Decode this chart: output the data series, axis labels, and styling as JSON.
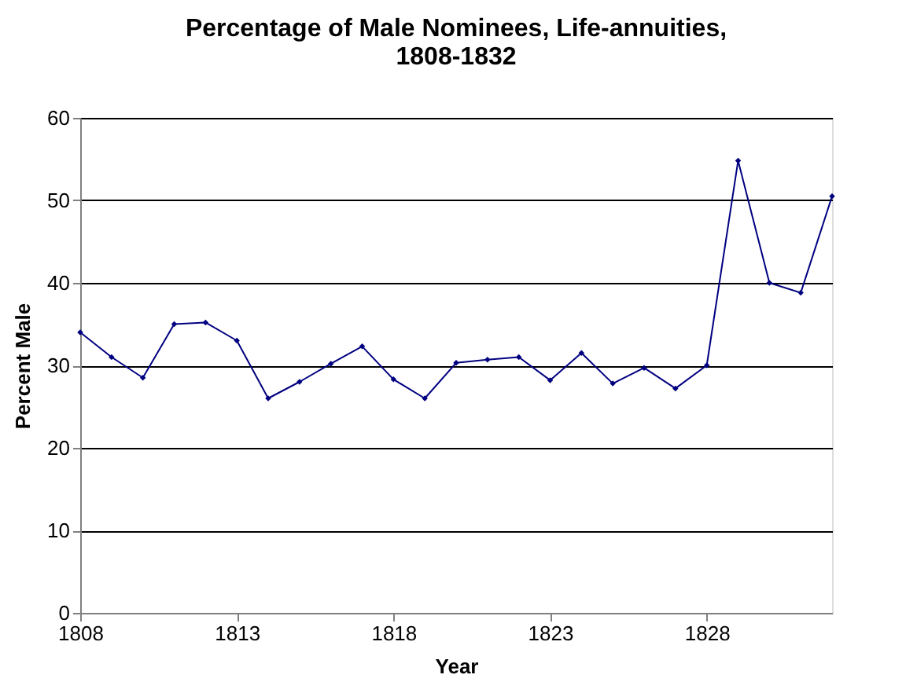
{
  "chart_data": {
    "type": "line",
    "title": "Percentage of Male Nominees, Life-annuities,\n1808-1832",
    "xlabel": "Year",
    "ylabel": "Percent Male",
    "x": [
      1808,
      1809,
      1810,
      1811,
      1812,
      1813,
      1814,
      1815,
      1816,
      1817,
      1818,
      1819,
      1820,
      1821,
      1822,
      1823,
      1824,
      1825,
      1826,
      1827,
      1828,
      1829,
      1830,
      1831,
      1832
    ],
    "series": [
      {
        "color": "#000080",
        "values": [
          34,
          31,
          28.5,
          35,
          35.2,
          33,
          26,
          28,
          30.2,
          32.3,
          28.3,
          26,
          30.3,
          30.7,
          31,
          28.2,
          31.5,
          27.8,
          29.7,
          27.2,
          30,
          54.8,
          40,
          38.8,
          50.5
        ]
      }
    ],
    "xlim": [
      1808,
      1832
    ],
    "xticks": [
      1808,
      1813,
      1818,
      1823,
      1828
    ],
    "ylim": [
      0,
      60
    ],
    "yticks": [
      0,
      10,
      20,
      30,
      40,
      50,
      60
    ],
    "grid": "y",
    "marker": "diamond",
    "line_style": "solid"
  }
}
